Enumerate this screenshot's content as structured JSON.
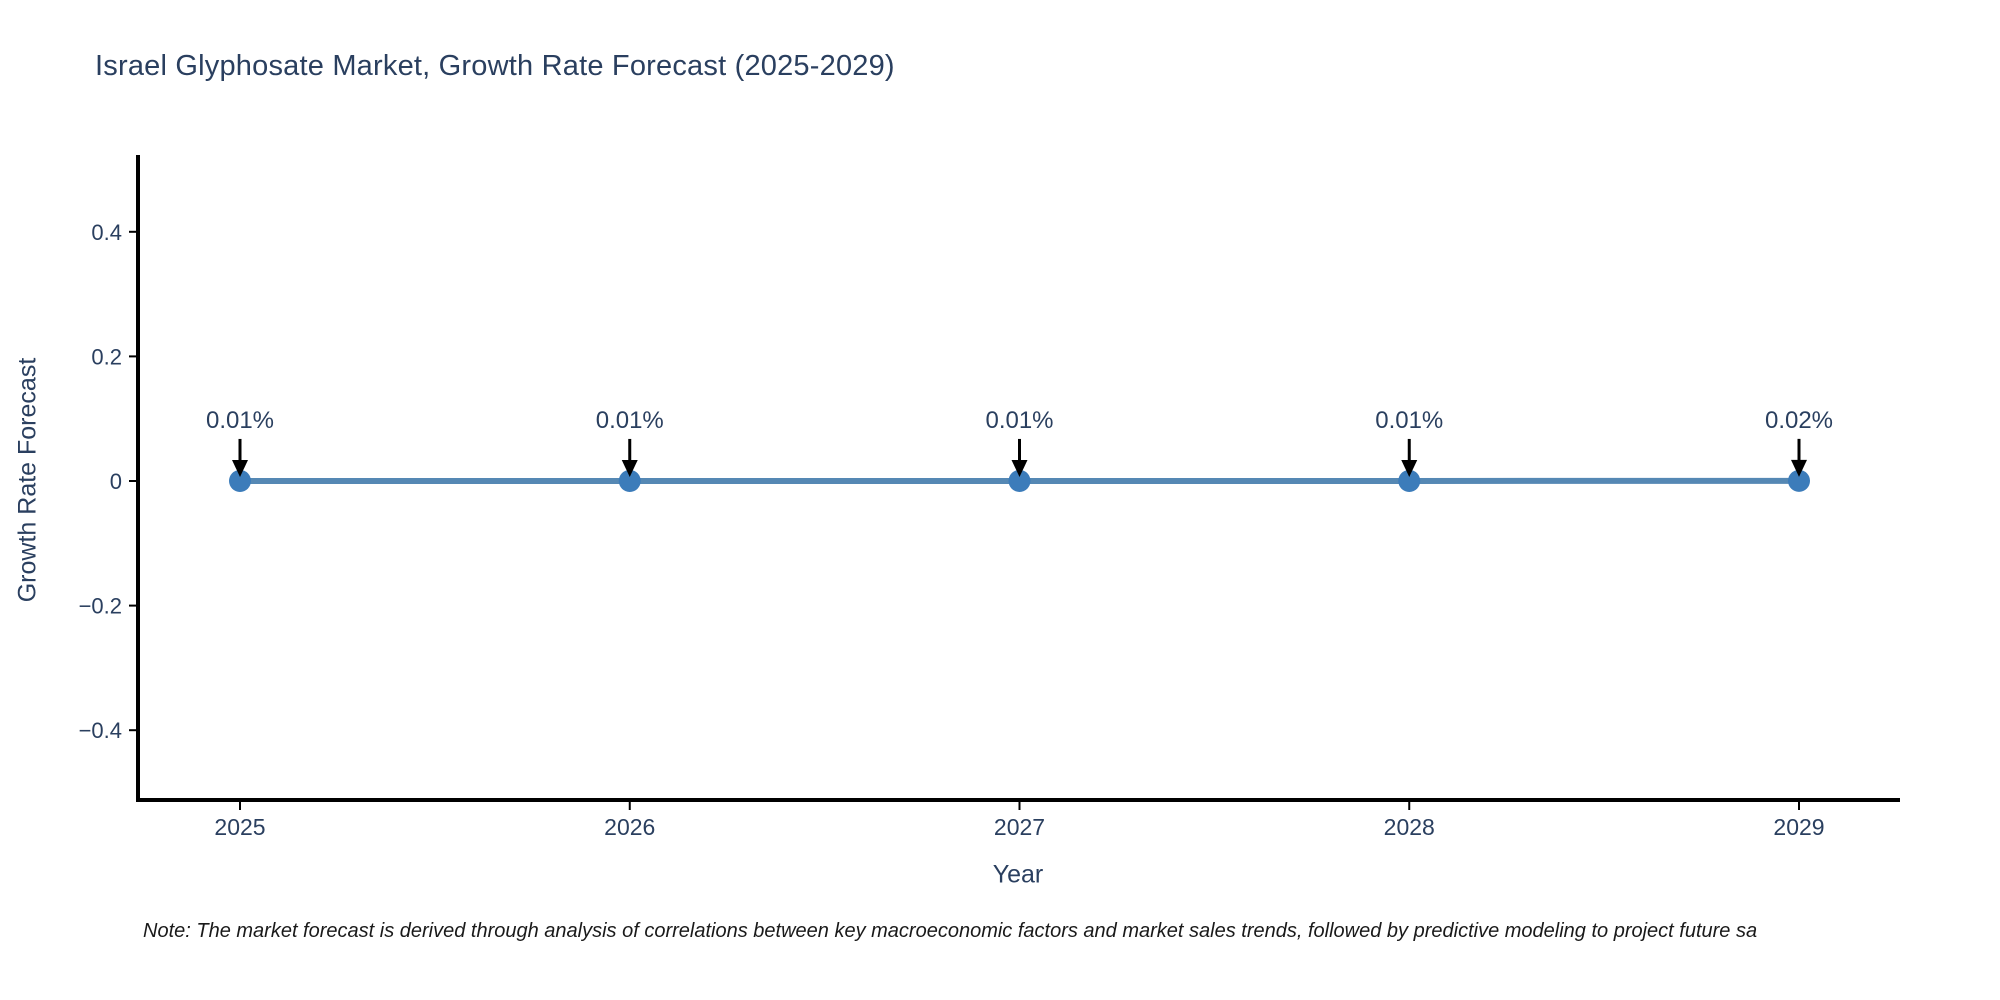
{
  "colors": {
    "title": "#2a3f5f",
    "tick_label": "#2a3f5f",
    "annotation": "#2a3f5f",
    "axis_line": "#000000",
    "line": "#5588b4",
    "marker": "#3c7cba",
    "arrow": "#000000",
    "note": "#1a1a1a",
    "background": "#ffffff"
  },
  "note": {
    "text": "Note: The market forecast is derived through analysis of correlations between key macroeconomic factors and market sales trends, followed by predictive modeling to project future sa"
  },
  "chart_data": {
    "type": "line",
    "title": "Israel Glyphosate Market, Growth Rate Forecast (2025-2029)",
    "xlabel": "Year",
    "ylabel": "Growth Rate Forecast",
    "categories": [
      "2025",
      "2026",
      "2027",
      "2028",
      "2029"
    ],
    "series": [
      {
        "name": "Growth Rate Forecast",
        "values_percent": [
          0.01,
          0.01,
          0.01,
          0.01,
          0.02
        ],
        "point_labels": [
          "0.01%",
          "0.01%",
          "0.01%",
          "0.01%",
          "0.02%"
        ]
      }
    ],
    "ylim": [
      -0.5,
      0.5
    ],
    "yticks": [
      {
        "value": 0.4,
        "label": "0.4"
      },
      {
        "value": 0.2,
        "label": "0.2"
      },
      {
        "value": 0,
        "label": "0"
      },
      {
        "value": -0.2,
        "label": "−0.2"
      },
      {
        "value": -0.4,
        "label": "−0.4"
      }
    ],
    "grid": false,
    "legend": "none",
    "annotation_arrows": true
  }
}
